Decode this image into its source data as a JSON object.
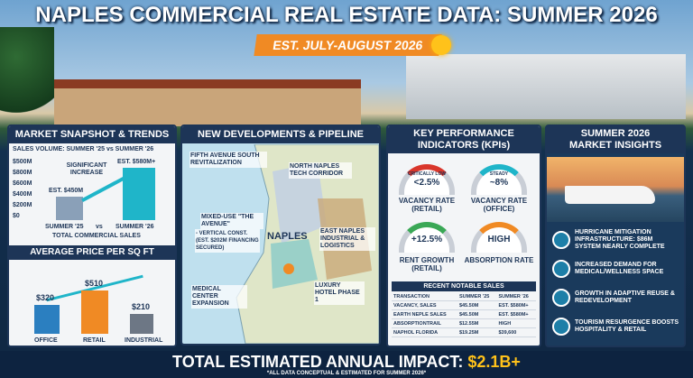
{
  "header": {
    "title": "NAPLES COMMERCIAL REAL ESTATE DATA: SUMMER 2026",
    "banner": "EST. JULY-AUGUST 2026"
  },
  "market": {
    "title": "MARKET SNAPSHOT & TRENDS",
    "subtitle": "SALES VOLUME: SUMMER '25 vs SUMMER '26",
    "yaxis": [
      "$500M",
      "$800M",
      "$600M",
      "$400M",
      "$200M",
      "$0"
    ],
    "note": "SIGNIFICANT INCREASE",
    "bars": [
      {
        "label": "SUMMER '25",
        "value_label": "EST. $450M"
      },
      {
        "label": "SUMMER '26",
        "value_label": "EST. $580M+"
      }
    ],
    "vs": "vs",
    "caption": "TOTAL COMMERCIAL SALES",
    "price_title": "AVERAGE PRICE PER SQ FT",
    "price": [
      {
        "label": "OFFICE",
        "value": "$320"
      },
      {
        "label": "RETAIL",
        "value": "$510"
      },
      {
        "label": "INDUSTRIAL",
        "value": "$210"
      }
    ]
  },
  "developments": {
    "title": "NEW DEVELOPMENTS & PIPELINE",
    "labels": [
      "FIFTH AVENUE SOUTH REVITALIZATION",
      "NORTH NAPLES TECH CORRIDOR",
      "MIXED-USE \"THE AVENUE\"",
      "- VERTICAL CONST. (EST. $202M FINANCING SECURED)",
      "EAST NAPLES INDUSTRIAL & LOGISTICS",
      "MEDICAL CENTER EXPANSION",
      "LUXURY HOTEL PHASE 1"
    ],
    "city": "NAPLES"
  },
  "kpi": {
    "title": "KEY PERFORMANCE INDICATORS (KPIs)",
    "gauges": [
      {
        "reading": "CRITICALLY LOW",
        "value": "<2.5%",
        "label": "VACANCY RATE (RETAIL)"
      },
      {
        "reading": "STEADY",
        "value": "~8%",
        "label": "VACANCY RATE (OFFICE)"
      },
      {
        "value": "+12.5%",
        "label": "RENT GROWTH (RETAIL)"
      },
      {
        "value": "HIGH",
        "label": "ABSORPTION RATE"
      }
    ],
    "sales": {
      "title": "RECENT NOTABLE SALES",
      "header": [
        "TRANSACTION",
        "SUMMER '25",
        "SUMMER '26"
      ],
      "rows": [
        [
          "VACANCY, SALES",
          "$45.50M",
          "EST. $580M+"
        ],
        [
          "EARTH NEPLE SALES",
          "$45.50M",
          "EST. $580M+"
        ],
        [
          "ABSORPTIONTRAIL",
          "$12.55M",
          "HIGH"
        ],
        [
          "NAPHOL FLORIDA",
          "$19.25M",
          "$39,600"
        ]
      ]
    }
  },
  "insights": {
    "title": "SUMMER 2026 MARKET INSIGHTS",
    "items": [
      "HURRICANE MITIGATION INFRASTRUCTURE: $86M SYSTEM NEARLY COMPLETE",
      "INCREASED DEMAND FOR MEDICAL/WELLNESS SPACE",
      "GROWTH IN ADAPTIVE REUSE & REDEVELOPMENT",
      "TOURISM RESURGENCE BOOSTS HOSPITALITY & RETAIL"
    ]
  },
  "footer": {
    "label": "TOTAL ESTIMATED ANNUAL IMPACT:",
    "value": "$2.1B+",
    "note": "*ALL DATA CONCEPTUAL & ESTIMATED FOR SUMMER 2026*"
  }
}
